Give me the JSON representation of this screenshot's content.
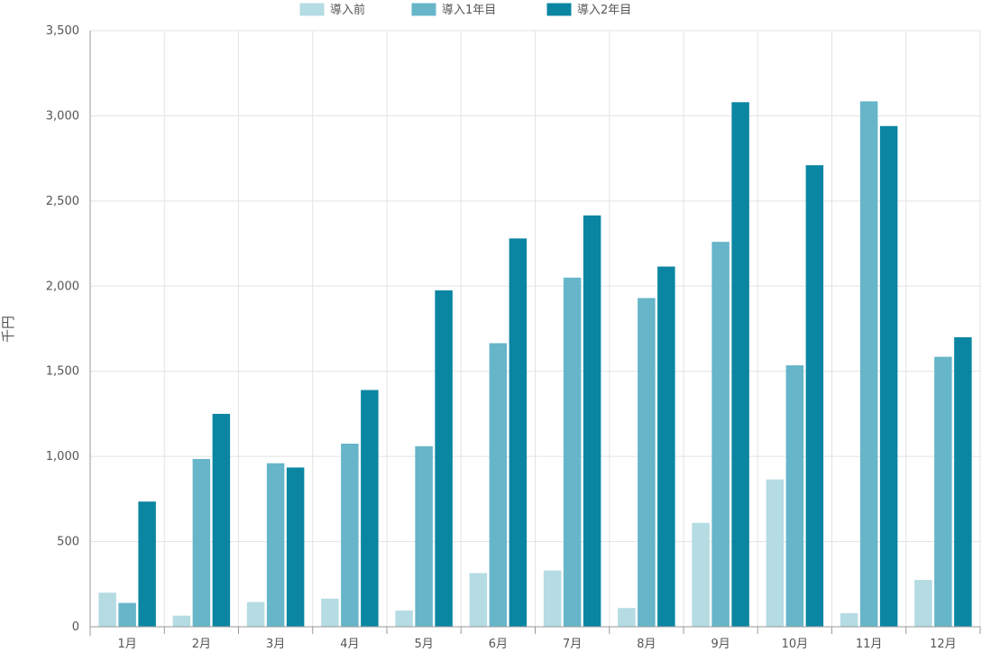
{
  "chart_data": {
    "type": "bar",
    "title": "",
    "xlabel": "",
    "ylabel": "千円",
    "ylim": [
      0,
      3500
    ],
    "yticks": [
      0,
      500,
      1000,
      1500,
      2000,
      2500,
      3000,
      3500
    ],
    "ytick_labels": [
      "0",
      "500",
      "1,000",
      "1,500",
      "2,000",
      "2,500",
      "3,000",
      "3,500"
    ],
    "grid": true,
    "legend_position": "top-center",
    "categories": [
      "1月",
      "2月",
      "3月",
      "4月",
      "5月",
      "6月",
      "7月",
      "8月",
      "9月",
      "10月",
      "11月",
      "12月"
    ],
    "series": [
      {
        "name": "導入前",
        "color": "#b5dbe3",
        "values": [
          200,
          65,
          145,
          165,
          95,
          315,
          330,
          110,
          610,
          865,
          80,
          275
        ]
      },
      {
        "name": "導入1年目",
        "color": "#66b5c9",
        "values": [
          140,
          985,
          960,
          1075,
          1060,
          1665,
          2050,
          1930,
          2260,
          1535,
          3085,
          1585
        ]
      },
      {
        "name": "導入2年目",
        "color": "#0a86a2",
        "values": [
          735,
          1250,
          935,
          1390,
          1975,
          2280,
          2415,
          2115,
          3080,
          2710,
          2940,
          1700
        ]
      }
    ]
  }
}
